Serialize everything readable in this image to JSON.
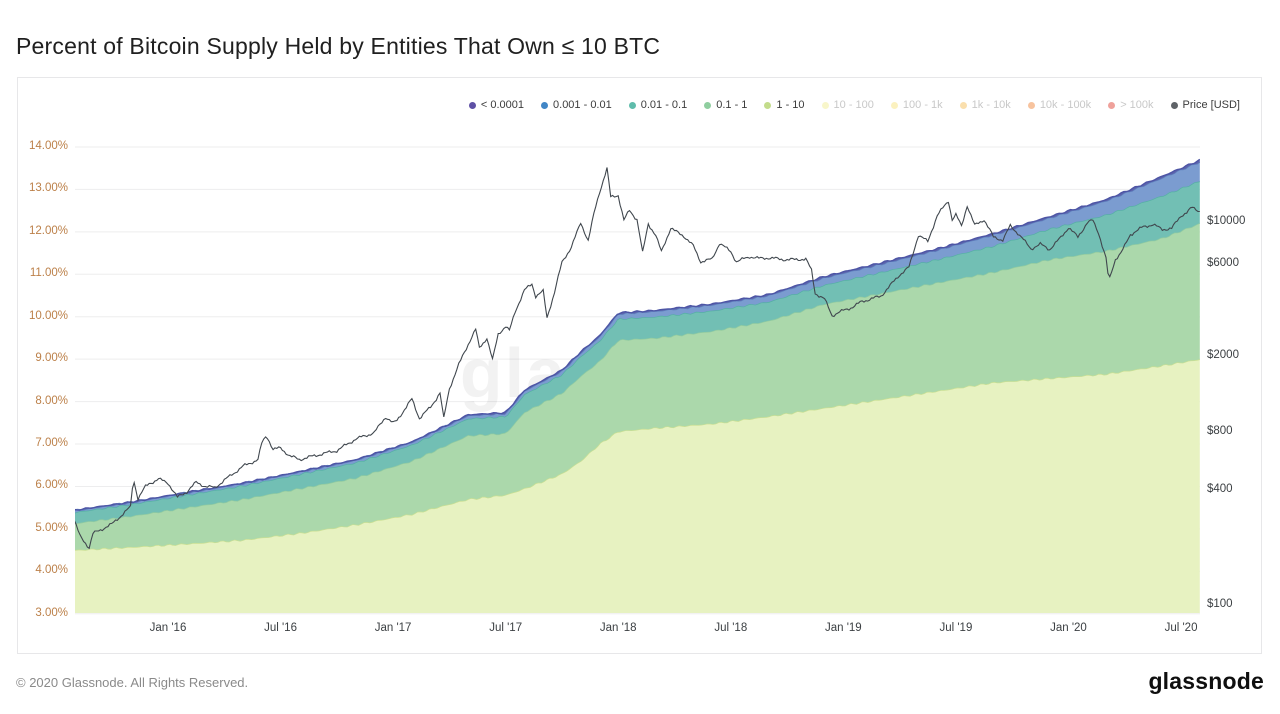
{
  "title": "Percent of Bitcoin Supply Held by Entities That Own ≤ 10 BTC",
  "watermark": "glassnode",
  "footer": {
    "copyright": "© 2020 Glassnode. All Rights Reserved.",
    "brand": "glassnode"
  },
  "legend": [
    {
      "label": "< 0.0001",
      "color": "#5e50a5",
      "active": true
    },
    {
      "label": "0.001 - 0.01",
      "color": "#4186c6",
      "active": true
    },
    {
      "label": "0.01 - 0.1",
      "color": "#5fbcab",
      "active": true
    },
    {
      "label": "0.1 - 1",
      "color": "#8fce9f",
      "active": true
    },
    {
      "label": "1 - 10",
      "color": "#c3dc8b",
      "active": true
    },
    {
      "label": "10 - 100",
      "color": "#f2ef9f",
      "active": false
    },
    {
      "label": "100 - 1k",
      "color": "#f7e58b",
      "active": false
    },
    {
      "label": "1k - 10k",
      "color": "#f6c46a",
      "active": false
    },
    {
      "label": "10k - 100k",
      "color": "#f0924f",
      "active": false
    },
    {
      "label": "> 100k",
      "color": "#e25449",
      "active": false
    },
    {
      "label": "Price [USD]",
      "color": "#5f6368",
      "active": true
    }
  ],
  "axes": {
    "y_left": {
      "ticks": [
        14,
        13,
        12,
        11,
        10,
        9,
        8,
        7,
        6,
        5,
        4,
        3
      ],
      "labels": [
        "14.00%",
        "13.00%",
        "12.00%",
        "11.00%",
        "10.00%",
        "9.00%",
        "8.00%",
        "7.00%",
        "6.00%",
        "5.00%",
        "4.00%",
        "3.00%"
      ],
      "color": "#bc8049"
    },
    "y_right": {
      "ticks": [
        10000,
        6000,
        2000,
        800,
        400,
        100
      ],
      "labels": [
        "$10000",
        "$6000",
        "$2000",
        "$800",
        "$400",
        "$100"
      ]
    },
    "x": {
      "ticks": [
        5,
        11,
        17,
        23,
        29,
        35,
        41,
        47,
        53,
        59
      ],
      "labels": [
        "Jan '16",
        "Jul '16",
        "Jan '17",
        "Jul '17",
        "Jan '18",
        "Jul '18",
        "Jan '19",
        "Jul '19",
        "Jan '20",
        "Jul '20"
      ]
    }
  },
  "chart_data": {
    "type": "area",
    "stacked": true,
    "title": "Percent of Bitcoin Supply Held by Entities That Own ≤ 10 BTC",
    "x_unit": "months since 2015-08",
    "dates": [
      "2015-08",
      "2015-11",
      "2016-02",
      "2016-05",
      "2016-08",
      "2016-11",
      "2017-02",
      "2017-05",
      "2017-07",
      "2017-08",
      "2017-10",
      "2017-11",
      "2017-12",
      "2018-01",
      "2018-03",
      "2018-06",
      "2018-09",
      "2018-12",
      "2019-03",
      "2019-06",
      "2019-09",
      "2019-12",
      "2020-03",
      "2020-06",
      "2020-08"
    ],
    "t_months": [
      0,
      3,
      6,
      9,
      12,
      15,
      18,
      21,
      23,
      24,
      26,
      27,
      28,
      29,
      31,
      34,
      37,
      40,
      43,
      46,
      49,
      52,
      55,
      58,
      60
    ],
    "ylim_percent": [
      3,
      14
    ],
    "price_axis_log_usd": [
      100,
      10000
    ],
    "series": [
      {
        "name": "1 - 10",
        "fill": "#e7f2c1",
        "stroke": "#c9df93",
        "values": [
          4.5,
          4.57,
          4.65,
          4.74,
          4.9,
          5.1,
          5.35,
          5.7,
          5.8,
          5.95,
          6.3,
          6.6,
          7.0,
          7.3,
          7.38,
          7.48,
          7.65,
          7.85,
          8.05,
          8.25,
          8.45,
          8.55,
          8.65,
          8.85,
          9.0
        ]
      },
      {
        "name": "0.1 - 1",
        "fill": "#abd8ab",
        "stroke": "#92cba0",
        "values": [
          0.63,
          0.73,
          0.85,
          0.96,
          1.05,
          1.1,
          1.25,
          1.5,
          1.45,
          1.8,
          1.9,
          2.0,
          1.95,
          2.15,
          2.12,
          2.18,
          2.25,
          2.45,
          2.5,
          2.55,
          2.6,
          2.8,
          2.9,
          3.0,
          3.2
        ]
      },
      {
        "name": "0.01 - 0.1",
        "fill": "#72bfb4",
        "stroke": "#55b0a4",
        "values": [
          0.26,
          0.28,
          0.3,
          0.32,
          0.34,
          0.36,
          0.38,
          0.4,
          0.4,
          0.42,
          0.44,
          0.46,
          0.48,
          0.5,
          0.5,
          0.48,
          0.45,
          0.45,
          0.5,
          0.55,
          0.62,
          0.72,
          0.85,
          1.0,
          1.0
        ]
      },
      {
        "name": "0.001 - 0.01",
        "fill": "#7b9cd0",
        "stroke": "#5f82bf",
        "values": [
          0.04,
          0.04,
          0.05,
          0.05,
          0.05,
          0.06,
          0.06,
          0.07,
          0.07,
          0.08,
          0.08,
          0.09,
          0.1,
          0.12,
          0.13,
          0.14,
          0.15,
          0.17,
          0.19,
          0.22,
          0.26,
          0.26,
          0.33,
          0.42,
          0.45
        ]
      },
      {
        "name": "< 0.0001",
        "fill": "#5d63ac",
        "stroke": "#4d55a5",
        "values": [
          0.01,
          0.01,
          0.01,
          0.01,
          0.01,
          0.01,
          0.01,
          0.02,
          0.02,
          0.02,
          0.02,
          0.02,
          0.02,
          0.02,
          0.02,
          0.02,
          0.02,
          0.03,
          0.03,
          0.03,
          0.03,
          0.03,
          0.03,
          0.04,
          0.04
        ]
      }
    ],
    "price": {
      "name": "Price [USD]",
      "color": "#40474e",
      "points": [
        [
          0,
          277
        ],
        [
          0.3,
          230
        ],
        [
          0.8,
          199
        ],
        [
          1,
          236
        ],
        [
          2,
          264
        ],
        [
          3,
          325
        ],
        [
          3.15,
          460
        ],
        [
          3.4,
          360
        ],
        [
          3.8,
          415
        ],
        [
          4,
          430
        ],
        [
          4.5,
          455
        ],
        [
          5,
          434
        ],
        [
          5.5,
          365
        ],
        [
          6,
          390
        ],
        [
          6.5,
          437
        ],
        [
          7,
          416
        ],
        [
          7.5,
          410
        ],
        [
          8,
          448
        ],
        [
          9,
          530
        ],
        [
          9.8,
          575
        ],
        [
          10,
          700
        ],
        [
          10.25,
          770
        ],
        [
          10.6,
          650
        ],
        [
          11,
          660
        ],
        [
          11.5,
          600
        ],
        [
          12,
          575
        ],
        [
          13,
          608
        ],
        [
          14,
          640
        ],
        [
          15,
          735
        ],
        [
          16,
          795
        ],
        [
          16.6,
          960
        ],
        [
          17,
          890
        ],
        [
          17.2,
          920
        ],
        [
          18,
          1190
        ],
        [
          18.4,
          945
        ],
        [
          19,
          1080
        ],
        [
          19.5,
          1280
        ],
        [
          19.7,
          940
        ],
        [
          20,
          1350
        ],
        [
          20.5,
          1800
        ],
        [
          21,
          2300
        ],
        [
          21.4,
          2750
        ],
        [
          21.6,
          2200
        ],
        [
          22,
          2480
        ],
        [
          22.3,
          1900
        ],
        [
          22.6,
          2600
        ],
        [
          23,
          2850
        ],
        [
          23.2,
          2700
        ],
        [
          23.5,
          3400
        ],
        [
          24,
          4400
        ],
        [
          24.4,
          4750
        ],
        [
          24.6,
          4100
        ],
        [
          25,
          4350
        ],
        [
          25.2,
          3150
        ],
        [
          25.6,
          4300
        ],
        [
          26,
          6150
        ],
        [
          26.5,
          7400
        ],
        [
          27,
          9900
        ],
        [
          27.4,
          8000
        ],
        [
          27.7,
          11000
        ],
        [
          28,
          14300
        ],
        [
          28.4,
          19000
        ],
        [
          28.6,
          13500
        ],
        [
          29,
          13800
        ],
        [
          29.3,
          10200
        ],
        [
          29.6,
          11500
        ],
        [
          30,
          10300
        ],
        [
          30.3,
          6900
        ],
        [
          30.6,
          9800
        ],
        [
          31,
          8500
        ],
        [
          31.3,
          7000
        ],
        [
          31.8,
          9300
        ],
        [
          32,
          9000
        ],
        [
          32.5,
          8450
        ],
        [
          33,
          7500
        ],
        [
          33.4,
          6200
        ],
        [
          34,
          6400
        ],
        [
          34.4,
          7750
        ],
        [
          35,
          7000
        ],
        [
          35.3,
          6200
        ],
        [
          36,
          6600
        ],
        [
          36.5,
          6450
        ],
        [
          37,
          6500
        ],
        [
          38,
          6350
        ],
        [
          39,
          6400
        ],
        [
          39.3,
          5600
        ],
        [
          39.5,
          4250
        ],
        [
          40,
          3950
        ],
        [
          40.4,
          3250
        ],
        [
          41,
          3450
        ],
        [
          41.5,
          3600
        ],
        [
          42,
          3850
        ],
        [
          43,
          4100
        ],
        [
          44,
          5300
        ],
        [
          44.5,
          5800
        ],
        [
          45,
          8550
        ],
        [
          45.5,
          7900
        ],
        [
          46,
          10800
        ],
        [
          46.6,
          12900
        ],
        [
          46.8,
          10300
        ],
        [
          47,
          10900
        ],
        [
          47.3,
          9500
        ],
        [
          47.6,
          12200
        ],
        [
          48,
          9600
        ],
        [
          48.5,
          10300
        ],
        [
          49,
          8350
        ],
        [
          49.5,
          8050
        ],
        [
          49.9,
          9550
        ],
        [
          50.3,
          8750
        ],
        [
          51,
          7250
        ],
        [
          51.5,
          7650
        ],
        [
          52,
          7200
        ],
        [
          52.5,
          8100
        ],
        [
          53,
          9350
        ],
        [
          53.5,
          8350
        ],
        [
          54,
          9900
        ],
        [
          54.3,
          10200
        ],
        [
          54.6,
          8800
        ],
        [
          55,
          6450
        ],
        [
          55.15,
          4900
        ],
        [
          55.5,
          6400
        ],
        [
          55.8,
          6900
        ],
        [
          56,
          7500
        ],
        [
          56.3,
          8600
        ],
        [
          57,
          9450
        ],
        [
          57.5,
          9700
        ],
        [
          58,
          9150
        ],
        [
          58.5,
          9250
        ],
        [
          59,
          10800
        ],
        [
          59.3,
          11200
        ],
        [
          59.6,
          11900
        ],
        [
          60,
          11400
        ]
      ]
    }
  }
}
